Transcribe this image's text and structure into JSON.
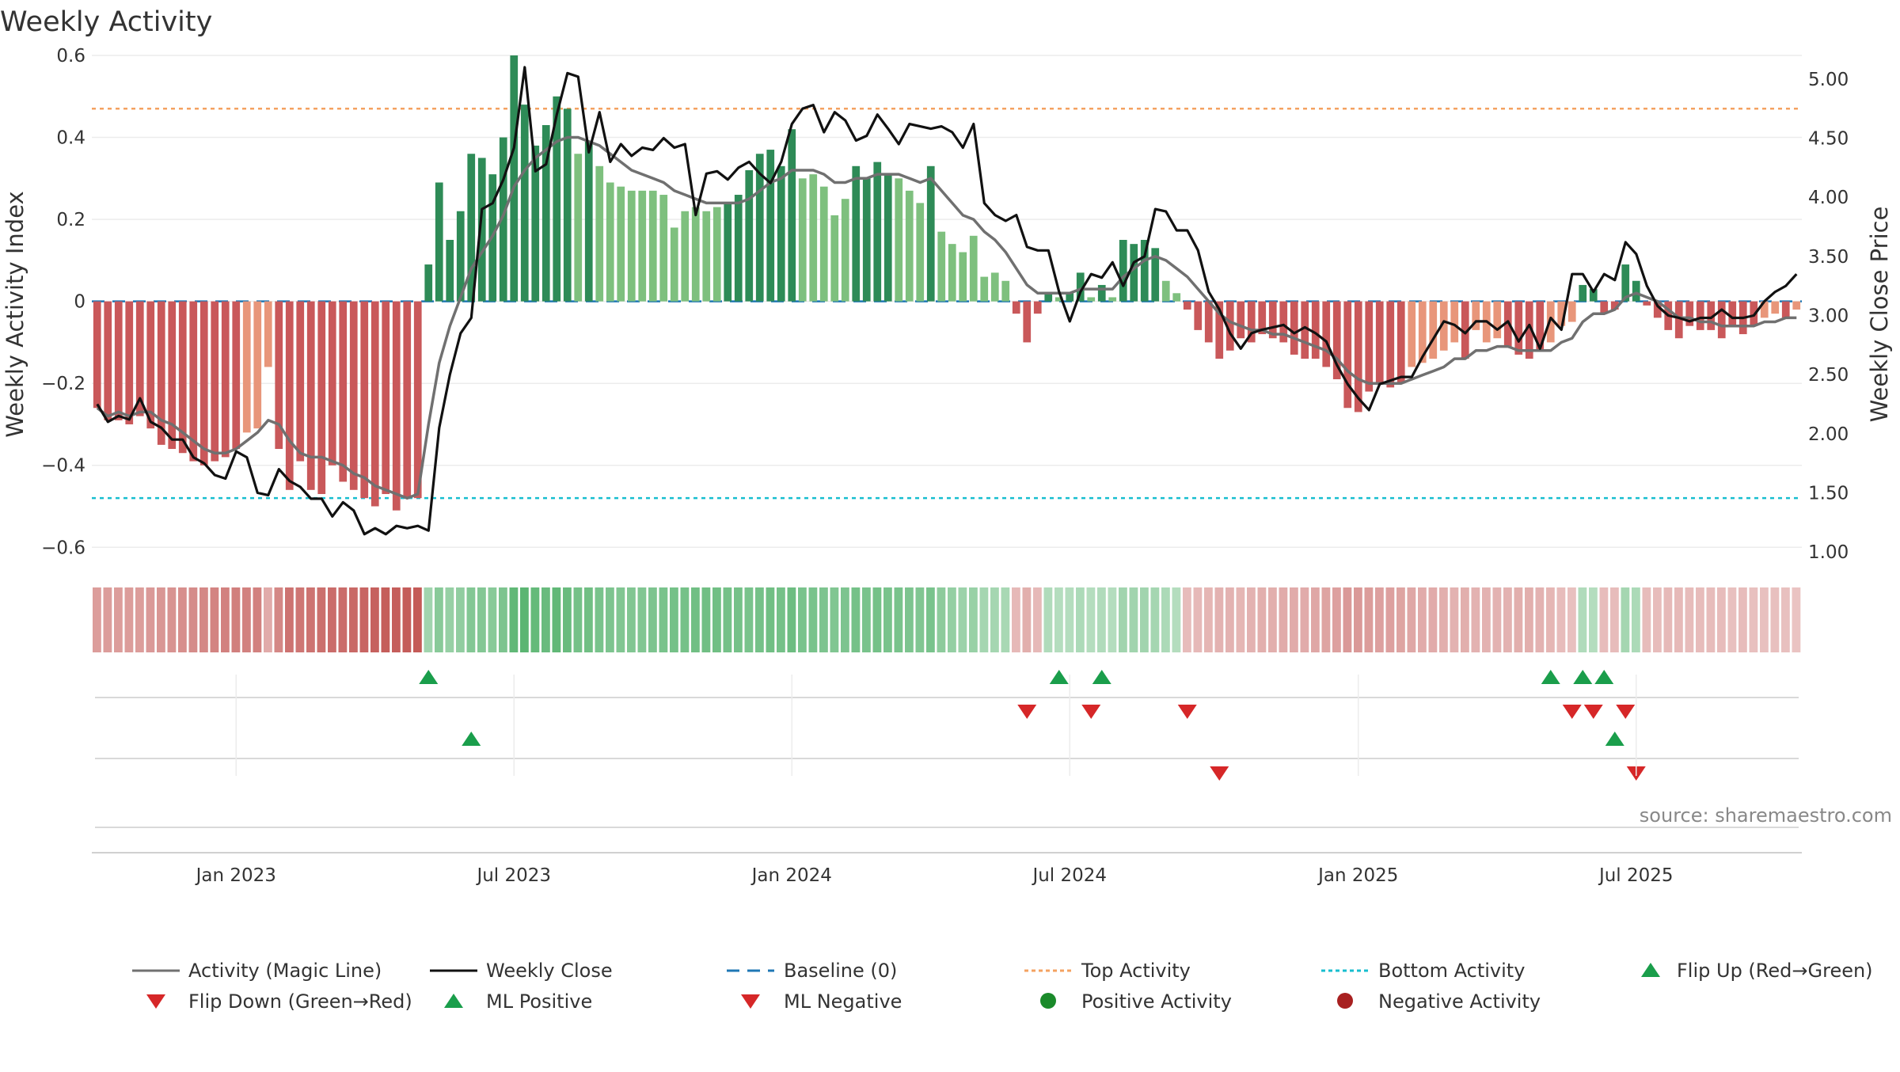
{
  "chart_data": {
    "type": "bar",
    "title": "Weekly Activity",
    "source": "source: sharemaestro.com",
    "ylabel_left": "Weekly Activity Index",
    "ylabel_right": "Weekly Close Price",
    "ylim_left": [
      -0.64,
      0.6
    ],
    "ylim_right": [
      0.9,
      5.2
    ],
    "yticks_left": [
      {
        "v": 0.6,
        "label": "0.6"
      },
      {
        "v": 0.4,
        "label": "0.4"
      },
      {
        "v": 0.2,
        "label": "0.2"
      },
      {
        "v": 0,
        "label": "0"
      },
      {
        "v": -0.2,
        "label": "−0.2"
      },
      {
        "v": -0.4,
        "label": "−0.4"
      },
      {
        "v": -0.6,
        "label": "−0.6"
      }
    ],
    "yticks_right": [
      {
        "v": 5.0,
        "label": "5.00"
      },
      {
        "v": 4.5,
        "label": "4.50"
      },
      {
        "v": 4.0,
        "label": "4.00"
      },
      {
        "v": 3.5,
        "label": "3.50"
      },
      {
        "v": 3.0,
        "label": "3.00"
      },
      {
        "v": 2.5,
        "label": "2.50"
      },
      {
        "v": 2.0,
        "label": "2.00"
      },
      {
        "v": 1.5,
        "label": "1.50"
      },
      {
        "v": 1.0,
        "label": "1.00"
      }
    ],
    "xticks": [
      {
        "label": "Jan 2023",
        "week": 13
      },
      {
        "label": "Jul 2023",
        "week": 39
      },
      {
        "label": "Jan 2024",
        "week": 65
      },
      {
        "label": "Jul 2024",
        "week": 91
      },
      {
        "label": "Jan 2025",
        "week": 118
      },
      {
        "label": "Jul 2025",
        "week": 144
      }
    ],
    "reference_lines": {
      "top_activity": 0.47,
      "bottom_activity": -0.48,
      "baseline": 0
    },
    "activity": [
      -0.26,
      -0.29,
      -0.29,
      -0.3,
      -0.28,
      -0.31,
      -0.35,
      -0.36,
      -0.37,
      -0.39,
      -0.4,
      -0.39,
      -0.38,
      -0.36,
      -0.32,
      -0.31,
      -0.16,
      -0.36,
      -0.46,
      -0.39,
      -0.46,
      -0.47,
      -0.4,
      -0.44,
      -0.46,
      -0.48,
      -0.5,
      -0.47,
      -0.51,
      -0.48,
      -0.48,
      0.09,
      0.29,
      0.15,
      0.22,
      0.36,
      0.35,
      0.31,
      0.4,
      0.6,
      0.48,
      0.38,
      0.43,
      0.5,
      0.47,
      0.36,
      0.39,
      0.33,
      0.29,
      0.28,
      0.27,
      0.27,
      0.27,
      0.26,
      0.18,
      0.22,
      0.23,
      0.22,
      0.23,
      0.24,
      0.26,
      0.32,
      0.36,
      0.37,
      0.33,
      0.42,
      0.3,
      0.31,
      0.28,
      0.21,
      0.25,
      0.33,
      0.3,
      0.34,
      0.31,
      0.3,
      0.27,
      0.24,
      0.33,
      0.17,
      0.14,
      0.12,
      0.16,
      0.06,
      0.07,
      0.05,
      -0.03,
      -0.1,
      -0.03,
      0.02,
      0.01,
      0.02,
      0.07,
      0.01,
      0.04,
      0.01,
      0.15,
      0.14,
      0.15,
      0.13,
      0.05,
      0.02,
      -0.02,
      -0.07,
      -0.1,
      -0.14,
      -0.12,
      -0.09,
      -0.1,
      -0.08,
      -0.09,
      -0.1,
      -0.13,
      -0.14,
      -0.14,
      -0.16,
      -0.19,
      -0.26,
      -0.27,
      -0.22,
      -0.2,
      -0.21,
      -0.2,
      -0.16,
      -0.15,
      -0.14,
      -0.12,
      -0.1,
      -0.14,
      -0.07,
      -0.1,
      -0.09,
      -0.11,
      -0.13,
      -0.14,
      -0.12,
      -0.1,
      -0.06,
      -0.05,
      0.04,
      0.03,
      -0.03,
      -0.02,
      0.09,
      0.05,
      -0.01,
      -0.04,
      -0.07,
      -0.09,
      -0.06,
      -0.07,
      -0.07,
      -0.09,
      -0.06,
      -0.08,
      -0.06,
      -0.04,
      -0.03,
      -0.04,
      -0.02
    ],
    "magic_line": [
      -0.26,
      -0.28,
      -0.27,
      -0.28,
      -0.27,
      -0.27,
      -0.29,
      -0.3,
      -0.32,
      -0.34,
      -0.36,
      -0.37,
      -0.37,
      -0.36,
      -0.34,
      -0.32,
      -0.29,
      -0.3,
      -0.34,
      -0.37,
      -0.38,
      -0.38,
      -0.39,
      -0.4,
      -0.42,
      -0.43,
      -0.45,
      -0.46,
      -0.47,
      -0.48,
      -0.47,
      -0.3,
      -0.15,
      -0.06,
      0.01,
      0.08,
      0.12,
      0.16,
      0.21,
      0.28,
      0.32,
      0.35,
      0.37,
      0.39,
      0.4,
      0.4,
      0.39,
      0.38,
      0.36,
      0.34,
      0.32,
      0.31,
      0.3,
      0.29,
      0.27,
      0.26,
      0.25,
      0.24,
      0.24,
      0.24,
      0.24,
      0.25,
      0.27,
      0.29,
      0.3,
      0.32,
      0.32,
      0.32,
      0.31,
      0.29,
      0.29,
      0.3,
      0.3,
      0.31,
      0.31,
      0.31,
      0.3,
      0.29,
      0.3,
      0.27,
      0.24,
      0.21,
      0.2,
      0.17,
      0.15,
      0.12,
      0.08,
      0.04,
      0.02,
      0.02,
      0.02,
      0.02,
      0.03,
      0.03,
      0.03,
      0.03,
      0.06,
      0.08,
      0.1,
      0.11,
      0.1,
      0.08,
      0.06,
      0.03,
      0.0,
      -0.03,
      -0.05,
      -0.06,
      -0.07,
      -0.07,
      -0.08,
      -0.08,
      -0.09,
      -0.1,
      -0.11,
      -0.12,
      -0.14,
      -0.17,
      -0.19,
      -0.2,
      -0.2,
      -0.2,
      -0.2,
      -0.19,
      -0.18,
      -0.17,
      -0.16,
      -0.14,
      -0.14,
      -0.12,
      -0.12,
      -0.11,
      -0.11,
      -0.12,
      -0.12,
      -0.12,
      -0.12,
      -0.1,
      -0.09,
      -0.05,
      -0.03,
      -0.03,
      -0.02,
      0.01,
      0.02,
      0.01,
      0.0,
      -0.02,
      -0.04,
      -0.04,
      -0.05,
      -0.05,
      -0.06,
      -0.06,
      -0.06,
      -0.06,
      -0.05,
      -0.05,
      -0.04,
      -0.04
    ],
    "weekly_close": [
      2.25,
      2.1,
      2.15,
      2.12,
      2.3,
      2.1,
      2.05,
      1.95,
      1.95,
      1.8,
      1.75,
      1.65,
      1.62,
      1.85,
      1.8,
      1.5,
      1.48,
      1.7,
      1.6,
      1.55,
      1.45,
      1.45,
      1.3,
      1.42,
      1.35,
      1.15,
      1.2,
      1.15,
      1.22,
      1.2,
      1.22,
      1.18,
      2.05,
      2.5,
      2.85,
      2.98,
      3.9,
      3.95,
      4.15,
      4.42,
      5.1,
      4.22,
      4.28,
      4.7,
      5.05,
      5.02,
      4.38,
      4.72,
      4.3,
      4.45,
      4.35,
      4.42,
      4.4,
      4.5,
      4.42,
      4.45,
      3.85,
      4.2,
      4.22,
      4.15,
      4.25,
      4.3,
      4.2,
      4.12,
      4.3,
      4.62,
      4.75,
      4.78,
      4.55,
      4.72,
      4.65,
      4.48,
      4.52,
      4.7,
      4.58,
      4.45,
      4.62,
      4.6,
      4.58,
      4.6,
      4.55,
      4.42,
      4.62,
      3.95,
      3.85,
      3.8,
      3.85,
      3.58,
      3.55,
      3.55,
      3.2,
      2.95,
      3.2,
      3.35,
      3.32,
      3.45,
      3.25,
      3.45,
      3.5,
      3.9,
      3.88,
      3.72,
      3.72,
      3.55,
      3.2,
      3.05,
      2.85,
      2.72,
      2.85,
      2.88,
      2.9,
      2.92,
      2.85,
      2.9,
      2.85,
      2.78,
      2.58,
      2.42,
      2.3,
      2.2,
      2.42,
      2.45,
      2.48,
      2.48,
      2.65,
      2.8,
      2.95,
      2.92,
      2.85,
      2.95,
      2.95,
      2.88,
      2.95,
      2.78,
      2.92,
      2.72,
      2.98,
      2.88,
      3.35,
      3.35,
      3.2,
      3.35,
      3.3,
      3.62,
      3.52,
      3.25,
      3.08,
      3.0,
      2.98,
      2.95,
      2.98,
      2.98,
      3.05,
      2.98,
      2.98,
      3.0,
      3.12,
      3.2,
      3.25,
      3.35
    ],
    "heat_strip_tint": [
      0.38,
      0.38,
      0.38,
      0.38,
      0.38,
      0.4,
      0.42,
      0.44,
      0.46,
      0.48,
      0.5,
      0.52,
      0.54,
      0.55,
      0.54,
      0.54,
      0.3,
      0.5,
      0.62,
      0.6,
      0.62,
      0.64,
      0.66,
      0.66,
      0.68,
      0.7,
      0.72,
      0.74,
      0.74,
      0.75,
      0.76,
      0.3,
      0.42,
      0.35,
      0.38,
      0.45,
      0.45,
      0.42,
      0.48,
      0.62,
      0.65,
      0.6,
      0.58,
      0.62,
      0.58,
      0.52,
      0.54,
      0.5,
      0.48,
      0.46,
      0.46,
      0.46,
      0.48,
      0.5,
      0.52,
      0.52,
      0.54,
      0.54,
      0.54,
      0.52,
      0.52,
      0.5,
      0.52,
      0.54,
      0.52,
      0.56,
      0.5,
      0.5,
      0.48,
      0.46,
      0.48,
      0.52,
      0.5,
      0.52,
      0.5,
      0.5,
      0.48,
      0.46,
      0.5,
      0.4,
      0.36,
      0.32,
      0.34,
      0.28,
      0.28,
      0.26,
      0.22,
      0.28,
      0.22,
      0.22,
      0.2,
      0.2,
      0.24,
      0.2,
      0.22,
      0.2,
      0.3,
      0.3,
      0.3,
      0.28,
      0.24,
      0.2,
      0.2,
      0.22,
      0.24,
      0.26,
      0.26,
      0.24,
      0.26,
      0.28,
      0.28,
      0.3,
      0.3,
      0.3,
      0.32,
      0.34,
      0.36,
      0.4,
      0.4,
      0.38,
      0.36,
      0.36,
      0.34,
      0.32,
      0.3,
      0.3,
      0.28,
      0.26,
      0.28,
      0.26,
      0.26,
      0.26,
      0.26,
      0.28,
      0.28,
      0.26,
      0.24,
      0.2,
      0.18,
      0.22,
      0.2,
      0.2,
      0.2,
      0.28,
      0.24,
      0.2,
      0.2,
      0.22,
      0.22,
      0.2,
      0.2,
      0.2,
      0.2,
      0.18,
      0.2,
      0.18,
      0.18,
      0.18,
      0.18,
      0.16
    ],
    "signals": {
      "flip_up": [
        31,
        90,
        94,
        136,
        139,
        141
      ],
      "flip_down": [
        87,
        93,
        102,
        138,
        140,
        143
      ],
      "ml_positive": [
        35,
        142
      ],
      "ml_negative": [
        105,
        144
      ]
    },
    "legend": {
      "activity_magic_line": "Activity (Magic Line)",
      "weekly_close": "Weekly Close",
      "baseline": "Baseline (0)",
      "top_activity": "Top Activity",
      "bottom_activity": "Bottom Activity",
      "flip_up": "Flip Up (Red→Green)",
      "flip_down": "Flip Down (Green→Red)",
      "ml_positive": "ML Positive",
      "ml_negative": "ML Negative",
      "positive_activity": "Positive Activity",
      "negative_activity": "Negative Activity"
    },
    "colors": {
      "pos_dark": "#2e8b57",
      "pos_light": "#7ec07e",
      "neg_dark": "#c9585a",
      "neg_light": "#e8967a",
      "magic_line": "#707070",
      "weekly_close": "#111111",
      "baseline": "#1f77b4",
      "top_activity": "#f4a261",
      "bottom_activity": "#17becf",
      "flip_up": "#1a9e4b",
      "flip_down": "#d62728",
      "ml_positive": "#1a9e4b",
      "ml_negative": "#d62728",
      "positive_activity": "#1a8a2a",
      "negative_activity": "#a82020",
      "strip_green": "#3aa655",
      "strip_red": "#c0504d"
    }
  }
}
